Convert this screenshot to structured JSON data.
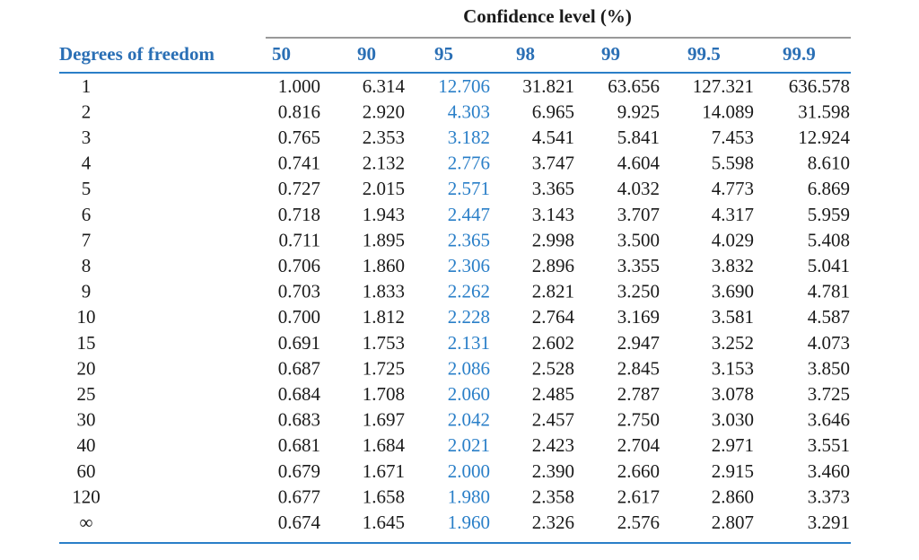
{
  "table": {
    "title": "Confidence level (%)",
    "row_header": "Degrees of freedom",
    "columns": [
      "50",
      "90",
      "95",
      "98",
      "99",
      "99.5",
      "99.9"
    ],
    "rows": [
      [
        "1",
        "1.000",
        "6.314",
        "12.706",
        "31.821",
        "63.656",
        "127.321",
        "636.578"
      ],
      [
        "2",
        "0.816",
        "2.920",
        "4.303",
        "6.965",
        "9.925",
        "14.089",
        "31.598"
      ],
      [
        "3",
        "0.765",
        "2.353",
        "3.182",
        "4.541",
        "5.841",
        "7.453",
        "12.924"
      ],
      [
        "4",
        "0.741",
        "2.132",
        "2.776",
        "3.747",
        "4.604",
        "5.598",
        "8.610"
      ],
      [
        "5",
        "0.727",
        "2.015",
        "2.571",
        "3.365",
        "4.032",
        "4.773",
        "6.869"
      ],
      [
        "6",
        "0.718",
        "1.943",
        "2.447",
        "3.143",
        "3.707",
        "4.317",
        "5.959"
      ],
      [
        "7",
        "0.711",
        "1.895",
        "2.365",
        "2.998",
        "3.500",
        "4.029",
        "5.408"
      ],
      [
        "8",
        "0.706",
        "1.860",
        "2.306",
        "2.896",
        "3.355",
        "3.832",
        "5.041"
      ],
      [
        "9",
        "0.703",
        "1.833",
        "2.262",
        "2.821",
        "3.250",
        "3.690",
        "4.781"
      ],
      [
        "10",
        "0.700",
        "1.812",
        "2.228",
        "2.764",
        "3.169",
        "3.581",
        "4.587"
      ],
      [
        "15",
        "0.691",
        "1.753",
        "2.131",
        "2.602",
        "2.947",
        "3.252",
        "4.073"
      ],
      [
        "20",
        "0.687",
        "1.725",
        "2.086",
        "2.528",
        "2.845",
        "3.153",
        "3.850"
      ],
      [
        "25",
        "0.684",
        "1.708",
        "2.060",
        "2.485",
        "2.787",
        "3.078",
        "3.725"
      ],
      [
        "30",
        "0.683",
        "1.697",
        "2.042",
        "2.457",
        "2.750",
        "3.030",
        "3.646"
      ],
      [
        "40",
        "0.681",
        "1.684",
        "2.021",
        "2.423",
        "2.704",
        "2.971",
        "3.551"
      ],
      [
        "60",
        "0.679",
        "1.671",
        "2.000",
        "2.390",
        "2.660",
        "2.915",
        "3.460"
      ],
      [
        "120",
        "0.677",
        "1.658",
        "1.980",
        "2.358",
        "2.617",
        "2.860",
        "3.373"
      ],
      [
        "∞",
        "0.674",
        "1.645",
        "1.960",
        "2.326",
        "2.576",
        "2.807",
        "3.291"
      ]
    ]
  }
}
